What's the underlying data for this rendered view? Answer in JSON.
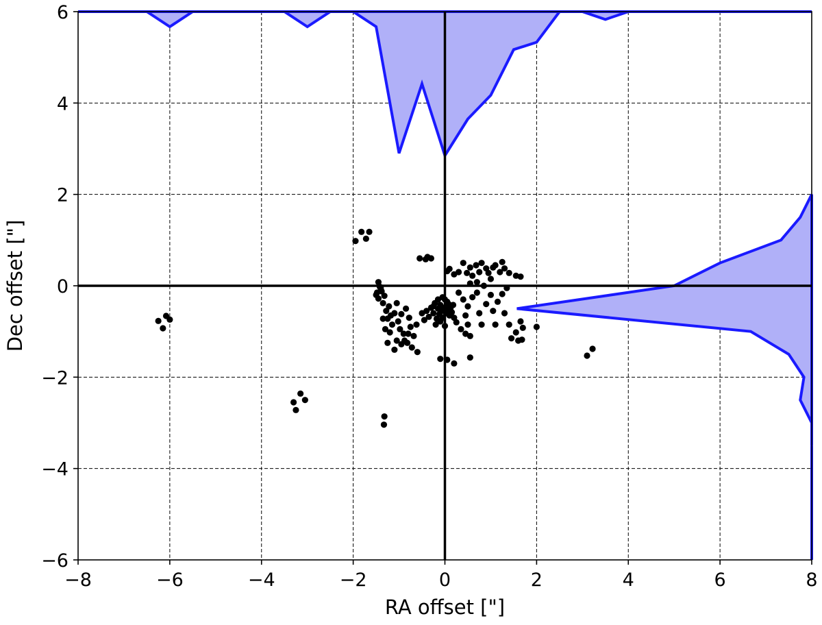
{
  "chart_data": {
    "type": "scatter",
    "xlabel": "RA offset [\"]",
    "ylabel": "Dec offset [\"]",
    "xlim": [
      -8,
      8
    ],
    "ylim": [
      -6,
      6
    ],
    "xticks": [
      -8,
      -6,
      -4,
      -2,
      0,
      2,
      4,
      6,
      8
    ],
    "yticks": [
      -6,
      -4,
      -2,
      0,
      2,
      4,
      6
    ],
    "xtick_labels": [
      "−8",
      "−6",
      "−4",
      "−2",
      "0",
      "2",
      "4",
      "6",
      "8"
    ],
    "ytick_labels": [
      "−6",
      "−4",
      "−2",
      "0",
      "2",
      "4",
      "6"
    ],
    "grid": true,
    "zero_lines": true,
    "colors": {
      "points": "#000000",
      "hist_fill": "#b0b0f8",
      "hist_edge": "#1a1aff"
    },
    "points": [
      [
        -6.25,
        -0.77
      ],
      [
        -6.15,
        -0.93
      ],
      [
        -6.08,
        -0.66
      ],
      [
        -6.0,
        -0.74
      ],
      [
        -3.3,
        -2.55
      ],
      [
        -3.25,
        -2.72
      ],
      [
        -3.15,
        -2.36
      ],
      [
        -3.05,
        -2.5
      ],
      [
        -1.32,
        -2.86
      ],
      [
        -1.33,
        -3.04
      ],
      [
        -1.95,
        0.98
      ],
      [
        -1.82,
        1.18
      ],
      [
        -1.72,
        1.03
      ],
      [
        -1.65,
        1.18
      ],
      [
        -0.55,
        0.6
      ],
      [
        -0.42,
        0.58
      ],
      [
        -0.38,
        0.63
      ],
      [
        -0.3,
        0.6
      ],
      [
        -1.48,
        -0.15
      ],
      [
        -1.45,
        -0.28
      ],
      [
        -1.4,
        -0.05
      ],
      [
        -1.35,
        -0.38
      ],
      [
        -1.32,
        -0.22
      ],
      [
        -1.28,
        -0.55
      ],
      [
        -1.25,
        -0.72
      ],
      [
        -1.22,
        -0.45
      ],
      [
        -1.18,
        -0.65
      ],
      [
        -1.15,
        -0.85
      ],
      [
        -1.1,
        -0.6
      ],
      [
        -1.05,
        -0.38
      ],
      [
        -1.02,
        -0.78
      ],
      [
        -0.98,
        -0.95
      ],
      [
        -0.95,
        -0.62
      ],
      [
        -0.9,
        -1.05
      ],
      [
        -0.85,
        -0.5
      ],
      [
        -0.82,
        -1.25
      ],
      [
        -0.78,
        -0.7
      ],
      [
        -0.75,
        -0.9
      ],
      [
        -0.72,
        -1.35
      ],
      [
        -0.68,
        -1.1
      ],
      [
        -0.62,
        -0.85
      ],
      [
        -0.6,
        -1.45
      ],
      [
        -1.45,
        0.08
      ],
      [
        -1.42,
        -0.02
      ],
      [
        -1.38,
        -0.12
      ],
      [
        -1.5,
        -0.2
      ],
      [
        -1.35,
        -0.72
      ],
      [
        -1.3,
        -0.95
      ],
      [
        -1.25,
        -1.25
      ],
      [
        -1.2,
        -1.02
      ],
      [
        -1.1,
        -1.4
      ],
      [
        -1.05,
        -1.2
      ],
      [
        -0.95,
        -1.28
      ],
      [
        -0.88,
        -1.2
      ],
      [
        -0.8,
        -1.05
      ],
      [
        -0.5,
        -0.6
      ],
      [
        -0.45,
        -0.75
      ],
      [
        -0.4,
        -0.55
      ],
      [
        -0.35,
        -0.68
      ],
      [
        -0.3,
        -0.48
      ],
      [
        -0.25,
        -0.6
      ],
      [
        -0.22,
        -0.38
      ],
      [
        -0.18,
        -0.72
      ],
      [
        -0.15,
        -0.5
      ],
      [
        -0.12,
        -0.62
      ],
      [
        -0.1,
        -0.42
      ],
      [
        -0.08,
        -0.55
      ],
      [
        -0.05,
        -0.7
      ],
      [
        -0.02,
        -0.48
      ],
      [
        0.02,
        -0.6
      ],
      [
        0.05,
        -0.52
      ],
      [
        0.08,
        -0.4
      ],
      [
        0.1,
        -0.65
      ],
      [
        0.12,
        -0.5
      ],
      [
        0.15,
        -0.58
      ],
      [
        0.18,
        -0.42
      ],
      [
        0.2,
        -0.7
      ],
      [
        -0.2,
        -0.85
      ],
      [
        -0.1,
        -0.78
      ],
      [
        0.0,
        -0.88
      ],
      [
        0.05,
        -0.35
      ],
      [
        0.0,
        -0.3
      ],
      [
        -0.05,
        -0.25
      ],
      [
        -0.15,
        -0.3
      ],
      [
        -0.25,
        -0.45
      ],
      [
        -0.1,
        -1.6
      ],
      [
        0.05,
        -1.62
      ],
      [
        0.2,
        -1.7
      ],
      [
        0.55,
        -1.57
      ],
      [
        0.05,
        0.32
      ],
      [
        0.1,
        0.37
      ],
      [
        0.2,
        0.25
      ],
      [
        0.3,
        0.3
      ],
      [
        0.4,
        0.5
      ],
      [
        0.48,
        0.28
      ],
      [
        0.55,
        0.4
      ],
      [
        0.6,
        0.22
      ],
      [
        0.68,
        0.45
      ],
      [
        0.75,
        0.3
      ],
      [
        0.8,
        0.5
      ],
      [
        0.9,
        0.38
      ],
      [
        0.95,
        0.28
      ],
      [
        1.0,
        0.15
      ],
      [
        1.05,
        0.4
      ],
      [
        1.1,
        0.45
      ],
      [
        1.2,
        0.3
      ],
      [
        1.25,
        0.52
      ],
      [
        1.3,
        0.38
      ],
      [
        1.4,
        0.28
      ],
      [
        1.55,
        0.22
      ],
      [
        1.65,
        0.2
      ],
      [
        0.55,
        0.05
      ],
      [
        0.7,
        0.08
      ],
      [
        0.85,
        0.0
      ],
      [
        0.3,
        -0.15
      ],
      [
        0.4,
        -0.3
      ],
      [
        0.5,
        -0.45
      ],
      [
        0.6,
        -0.25
      ],
      [
        0.7,
        -0.15
      ],
      [
        0.75,
        -0.6
      ],
      [
        0.8,
        -0.85
      ],
      [
        0.9,
        -0.4
      ],
      [
        1.0,
        -0.2
      ],
      [
        1.05,
        -0.55
      ],
      [
        1.1,
        -0.85
      ],
      [
        1.15,
        -0.35
      ],
      [
        1.25,
        -0.18
      ],
      [
        1.3,
        -0.6
      ],
      [
        1.35,
        -0.05
      ],
      [
        0.45,
        -0.65
      ],
      [
        0.5,
        -0.85
      ],
      [
        0.55,
        -1.1
      ],
      [
        0.35,
        -0.95
      ],
      [
        0.45,
        -1.05
      ],
      [
        0.25,
        -0.8
      ],
      [
        1.4,
        -0.85
      ],
      [
        1.45,
        -1.15
      ],
      [
        1.55,
        -1.02
      ],
      [
        1.6,
        -1.2
      ],
      [
        1.65,
        -0.78
      ],
      [
        1.7,
        -0.92
      ],
      [
        1.68,
        -1.18
      ],
      [
        2.0,
        -0.9
      ],
      [
        3.1,
        -1.53
      ],
      [
        3.22,
        -1.38
      ]
    ],
    "top_histogram": {
      "orientation": "vertical",
      "baseline_y": 6,
      "note_axes": "x in RA units, y in Dec units",
      "profile": [
        [
          -6.5,
          6
        ],
        [
          -6.0,
          5.67
        ],
        [
          -5.5,
          6
        ],
        [
          -4.0,
          6
        ],
        [
          -3.5,
          6
        ],
        [
          -3.0,
          5.67
        ],
        [
          -2.5,
          6
        ],
        [
          -2.0,
          6
        ],
        [
          -1.5,
          5.67
        ],
        [
          -1.0,
          2.9
        ],
        [
          -0.5,
          4.42
        ],
        [
          0.0,
          2.85
        ],
        [
          0.5,
          3.65
        ],
        [
          1.0,
          4.17
        ],
        [
          1.5,
          5.17
        ],
        [
          2.0,
          5.33
        ],
        [
          2.5,
          6
        ],
        [
          3.0,
          6
        ],
        [
          3.5,
          5.83
        ],
        [
          4.0,
          6
        ]
      ]
    },
    "right_histogram": {
      "orientation": "horizontal",
      "baseline_x": 8,
      "note_axes": "x in RA units, y in Dec units",
      "profile": [
        [
          8.0,
          2.0
        ],
        [
          7.75,
          1.5
        ],
        [
          7.33,
          1.0
        ],
        [
          6.0,
          0.5
        ],
        [
          5.0,
          0.0
        ],
        [
          1.57,
          -0.5
        ],
        [
          6.67,
          -1.0
        ],
        [
          7.5,
          -1.5
        ],
        [
          7.83,
          -2.0
        ],
        [
          7.75,
          -2.5
        ],
        [
          8.0,
          -3.0
        ],
        [
          8.0,
          -3.5
        ]
      ]
    }
  }
}
